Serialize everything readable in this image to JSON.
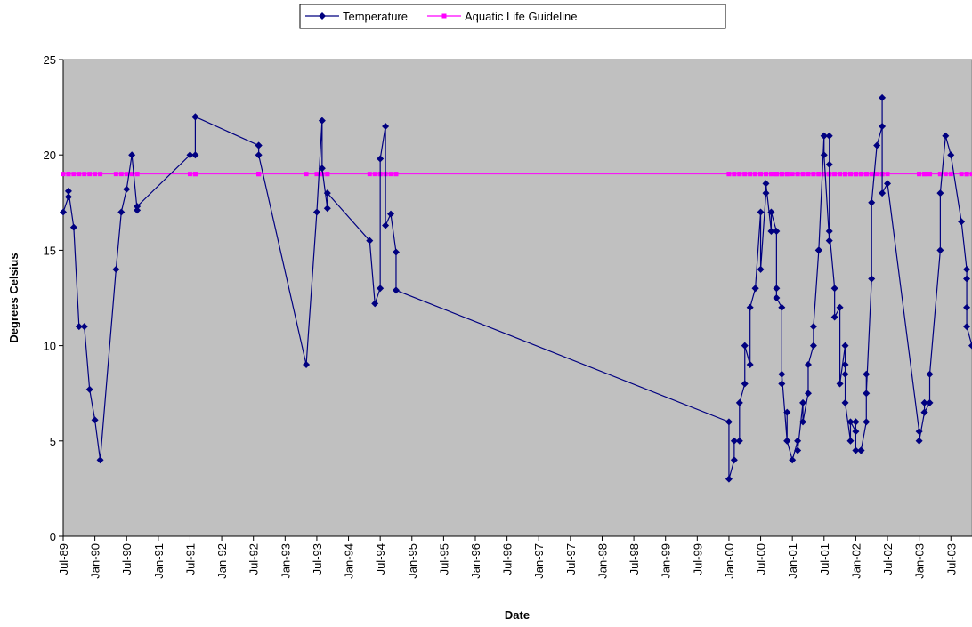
{
  "chart_data": {
    "type": "line",
    "x_label": "Date",
    "y_label": "Degrees Celsius",
    "x": [
      "1989-07",
      "1989-08",
      "1989-08",
      "1989-09",
      "1989-10",
      "1989-11",
      "1989-12",
      "1990-01",
      "1990-02",
      "1990-05",
      "1990-06",
      "1990-07",
      "1990-08",
      "1990-09",
      "1990-09",
      "1991-07",
      "1991-08",
      "1991-08",
      "1991-08",
      "1992-08",
      "1992-08",
      "1992-08",
      "1993-05",
      "1993-07",
      "1993-08",
      "1993-08",
      "1993-09",
      "1993-09",
      "1994-05",
      "1994-06",
      "1994-07",
      "1994-07",
      "1994-08",
      "1994-08",
      "1994-09",
      "1994-10",
      "1994-10",
      "2000-01",
      "2000-01",
      "2000-02",
      "2000-02",
      "2000-03",
      "2000-03",
      "2000-04",
      "2000-04",
      "2000-05",
      "2000-05",
      "2000-06",
      "2000-06",
      "2000-07",
      "2000-07",
      "2000-08",
      "2000-08",
      "2000-09",
      "2000-09",
      "2000-10",
      "2000-10",
      "2000-10",
      "2000-11",
      "2000-11",
      "2000-11",
      "2000-12",
      "2000-12",
      "2000-12",
      "2001-01",
      "2001-02",
      "2001-02",
      "2001-03",
      "2001-03",
      "2001-04",
      "2001-04",
      "2001-05",
      "2001-05",
      "2001-06",
      "2001-06",
      "2001-06",
      "2001-07",
      "2001-07",
      "2001-07",
      "2001-08",
      "2001-08",
      "2001-08",
      "2001-08",
      "2001-09",
      "2001-09",
      "2001-10",
      "2001-10",
      "2001-11",
      "2001-11",
      "2001-11",
      "2001-11",
      "2001-12",
      "2001-12",
      "2002-01",
      "2002-01",
      "2002-01",
      "2002-01",
      "2002-02",
      "2002-02",
      "2002-02",
      "2002-03",
      "2002-03",
      "2002-03",
      "2002-04",
      "2002-04",
      "2002-05",
      "2002-06",
      "2002-06",
      "2002-06",
      "2002-07",
      "2003-01",
      "2003-01",
      "2003-02",
      "2003-02",
      "2003-02",
      "2003-03",
      "2003-03",
      "2003-05",
      "2003-05",
      "2003-06",
      "2003-07",
      "2003-09",
      "2003-10",
      "2003-10",
      "2003-10",
      "2003-10",
      "2003-11"
    ],
    "series": [
      {
        "name": "Aquatic Life Guideline",
        "color": "#ff00ff",
        "marker": "square",
        "values": [
          19,
          19,
          19,
          19,
          19,
          19,
          19,
          19,
          19,
          19,
          19,
          19,
          19,
          19,
          19,
          19,
          19,
          19,
          19,
          19,
          19,
          19,
          19,
          19,
          19,
          19,
          19,
          19,
          19,
          19,
          19,
          19,
          19,
          19,
          19,
          19,
          19,
          19,
          19,
          19,
          19,
          19,
          19,
          19,
          19,
          19,
          19,
          19,
          19,
          19,
          19,
          19,
          19,
          19,
          19,
          19,
          19,
          19,
          19,
          19,
          19,
          19,
          19,
          19,
          19,
          19,
          19,
          19,
          19,
          19,
          19,
          19,
          19,
          19,
          19,
          19,
          19,
          19,
          19,
          19,
          19,
          19,
          19,
          19,
          19,
          19,
          19,
          19,
          19,
          19,
          19,
          19,
          19,
          19,
          19,
          19,
          19,
          19,
          19,
          19,
          19,
          19,
          19,
          19,
          19,
          19,
          19,
          19,
          19,
          19,
          19,
          19,
          19,
          19,
          19,
          19,
          19,
          19,
          19,
          19,
          19,
          19,
          19,
          19,
          19,
          19,
          19
        ]
      },
      {
        "name": "Temperature",
        "color": "#000080",
        "marker": "diamond",
        "values": [
          17,
          17.8,
          18.1,
          16.2,
          11,
          11,
          7.7,
          6.1,
          4,
          14,
          17,
          18.2,
          20,
          17.1,
          17.3,
          20,
          20,
          22,
          22,
          20.5,
          20.5,
          20,
          9,
          17,
          21.8,
          19.3,
          17.2,
          18,
          15.5,
          12.2,
          13,
          19.8,
          21.5,
          16.3,
          16.9,
          14.9,
          12.9,
          6,
          3,
          4,
          5,
          5,
          7,
          8,
          10,
          9,
          12,
          13,
          13,
          17,
          14,
          18,
          18.5,
          16,
          17,
          16,
          13,
          12.5,
          12,
          8,
          8.5,
          5,
          6.5,
          5,
          4,
          5,
          4.5,
          7,
          6,
          7.5,
          9,
          10,
          11,
          15,
          15,
          15,
          21,
          21,
          20,
          15.5,
          21,
          19.5,
          16,
          13,
          11.5,
          12,
          8,
          10,
          9,
          8.5,
          7,
          5,
          6,
          5.5,
          6,
          6,
          4.5,
          4.5,
          4.5,
          4.5,
          6,
          8.5,
          7.5,
          13.5,
          17.5,
          20.5,
          21.5,
          23,
          18,
          18.5,
          5.5,
          5,
          6.5,
          7,
          6.5,
          7,
          8.5,
          15,
          18,
          21,
          20,
          16.5,
          14,
          12,
          13.5,
          11,
          10
        ]
      }
    ],
    "legend_order": [
      1,
      0
    ],
    "xlim": [
      "1989-07",
      "2003-11"
    ],
    "xticks": [
      {
        "value": "1989-07",
        "label": "Jul-89"
      },
      {
        "value": "1990-01",
        "label": "Jan-90"
      },
      {
        "value": "1990-07",
        "label": "Jul-90"
      },
      {
        "value": "1991-01",
        "label": "Jan-91"
      },
      {
        "value": "1991-07",
        "label": "Jul-91"
      },
      {
        "value": "1992-01",
        "label": "Jan-92"
      },
      {
        "value": "1992-07",
        "label": "Jul-92"
      },
      {
        "value": "1993-01",
        "label": "Jan-93"
      },
      {
        "value": "1993-07",
        "label": "Jul-93"
      },
      {
        "value": "1994-01",
        "label": "Jan-94"
      },
      {
        "value": "1994-07",
        "label": "Jul-94"
      },
      {
        "value": "1995-01",
        "label": "Jan-95"
      },
      {
        "value": "1995-07",
        "label": "Jul-95"
      },
      {
        "value": "1996-01",
        "label": "Jan-96"
      },
      {
        "value": "1996-07",
        "label": "Jul-96"
      },
      {
        "value": "1997-01",
        "label": "Jan-97"
      },
      {
        "value": "1997-07",
        "label": "Jul-97"
      },
      {
        "value": "1998-01",
        "label": "Jan-98"
      },
      {
        "value": "1998-07",
        "label": "Jul-98"
      },
      {
        "value": "1999-01",
        "label": "Jan-99"
      },
      {
        "value": "1999-07",
        "label": "Jul-99"
      },
      {
        "value": "2000-01",
        "label": "Jan-00"
      },
      {
        "value": "2000-07",
        "label": "Jul-00"
      },
      {
        "value": "2001-01",
        "label": "Jan-01"
      },
      {
        "value": "2001-07",
        "label": "Jul-01"
      },
      {
        "value": "2002-01",
        "label": "Jan-02"
      },
      {
        "value": "2002-07",
        "label": "Jul-02"
      },
      {
        "value": "2003-01",
        "label": "Jan-03"
      },
      {
        "value": "2003-07",
        "label": "Jul-03"
      }
    ],
    "ylim": [
      0,
      25
    ],
    "yticks": [
      0,
      5,
      10,
      15,
      20,
      25
    ],
    "grid": false,
    "legend": "top",
    "plot_background": "#c0c0c0"
  }
}
